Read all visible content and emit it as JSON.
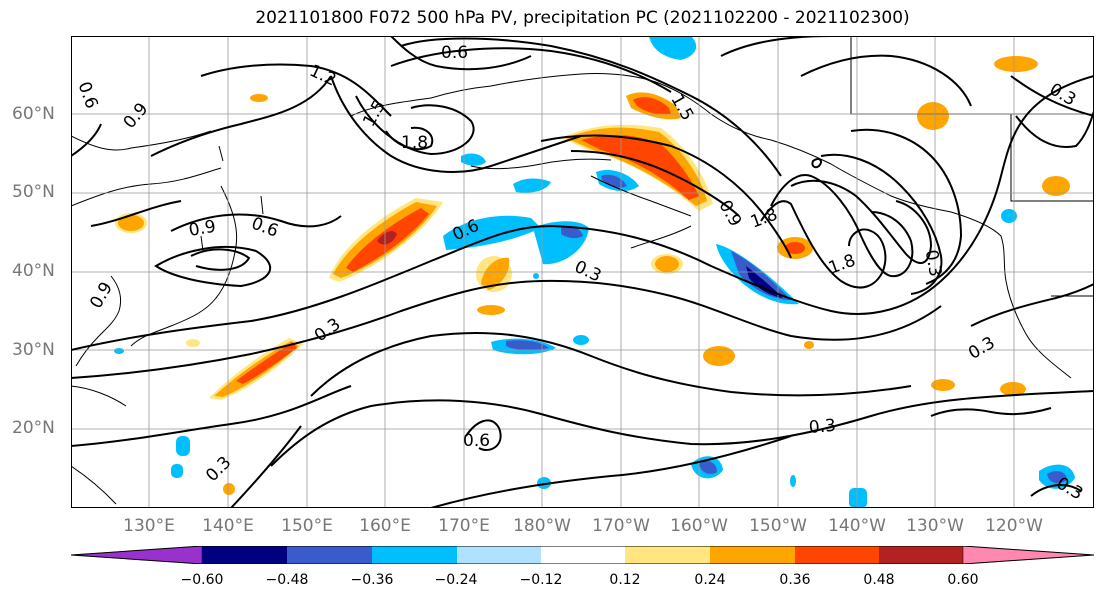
{
  "title": "2021101800 F072 500 hPa PV, precipitation PC (2021102200 - 2021102300)",
  "lat_labels": [
    "60°N",
    "50°N",
    "40°N",
    "30°N",
    "20°N"
  ],
  "lon_labels": [
    "130°E",
    "140°E",
    "150°E",
    "160°E",
    "170°E",
    "180°W",
    "170°W",
    "160°W",
    "150°W",
    "140°W",
    "130°W",
    "120°W"
  ],
  "contour_labels": {
    "c1": "0.6",
    "c2": "1.2",
    "c3": "1.5",
    "c4": "1.8",
    "c5": "0.9",
    "c6": "0.6",
    "c7": "0.9",
    "c8": "0.6",
    "c9": "0.9",
    "c10": "0.6",
    "c11": "0.3",
    "c12": "0.3",
    "c13": "0.6",
    "c14": "0.3",
    "c15": "0.3",
    "c16": "0.3",
    "c17": "1.5",
    "c18": "0.9",
    "c19": "1.8",
    "c20": "1.8",
    "c21": "0.3",
    "c22": "0.3",
    "c23": "0.3"
  },
  "colorbar": {
    "ticks": [
      "−0.60",
      "−0.48",
      "−0.36",
      "−0.24",
      "−0.12",
      "0.12",
      "0.24",
      "0.36",
      "0.48",
      "0.60"
    ],
    "colors": {
      "under": "#9932cc",
      "lt060": "#000080",
      "lt048": "#3a5bcc",
      "lt036": "#00bfff",
      "lt024": "#b0e2ff",
      "mid": "#ffffff",
      "p012": "#ffe680",
      "p024": "#ffa500",
      "p036": "#ff4500",
      "p048": "#b22222",
      "over": "#ff88b0"
    }
  }
}
